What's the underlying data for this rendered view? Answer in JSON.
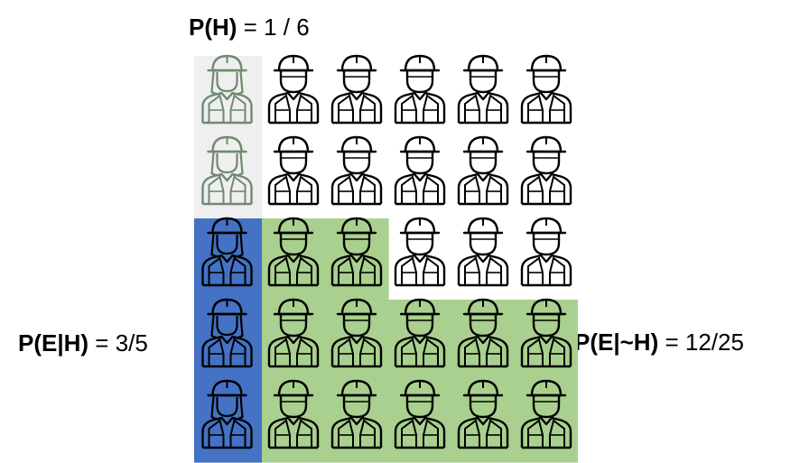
{
  "labels": {
    "p_h": {
      "bold": "P(H)",
      "rest": " = 1 / 6"
    },
    "p_e_given_h": {
      "bold": "P(E|H)",
      "rest": " = 3/5"
    },
    "p_e_given_not_h": {
      "bold": "P(E|~H)",
      "rest": " = 12/25"
    }
  },
  "grid": {
    "rows": 5,
    "cols": 6,
    "people": [
      [
        "woman",
        "man",
        "man",
        "man",
        "man",
        "man"
      ],
      [
        "woman",
        "man",
        "man",
        "man",
        "man",
        "man"
      ],
      [
        "woman",
        "man",
        "man",
        "man",
        "man",
        "man"
      ],
      [
        "woman",
        "man",
        "man",
        "man",
        "man",
        "man"
      ],
      [
        "woman",
        "man",
        "man",
        "man",
        "man",
        "man"
      ]
    ],
    "highlight": [
      [
        "gray",
        "none",
        "none",
        "none",
        "none",
        "none"
      ],
      [
        "gray",
        "none",
        "none",
        "none",
        "none",
        "none"
      ],
      [
        "blue",
        "green",
        "green",
        "none",
        "none",
        "none"
      ],
      [
        "blue",
        "green",
        "green",
        "green",
        "green",
        "green"
      ],
      [
        "blue",
        "green",
        "green",
        "green",
        "green",
        "green"
      ]
    ]
  },
  "colors": {
    "gray": "#efefef",
    "blue": "#4472c4",
    "green": "#a9d08e",
    "outline": "#000000",
    "outline_faded": "#6f8a6f"
  },
  "icons": {
    "woman": "female-worker-icon",
    "man": "male-worker-icon"
  }
}
